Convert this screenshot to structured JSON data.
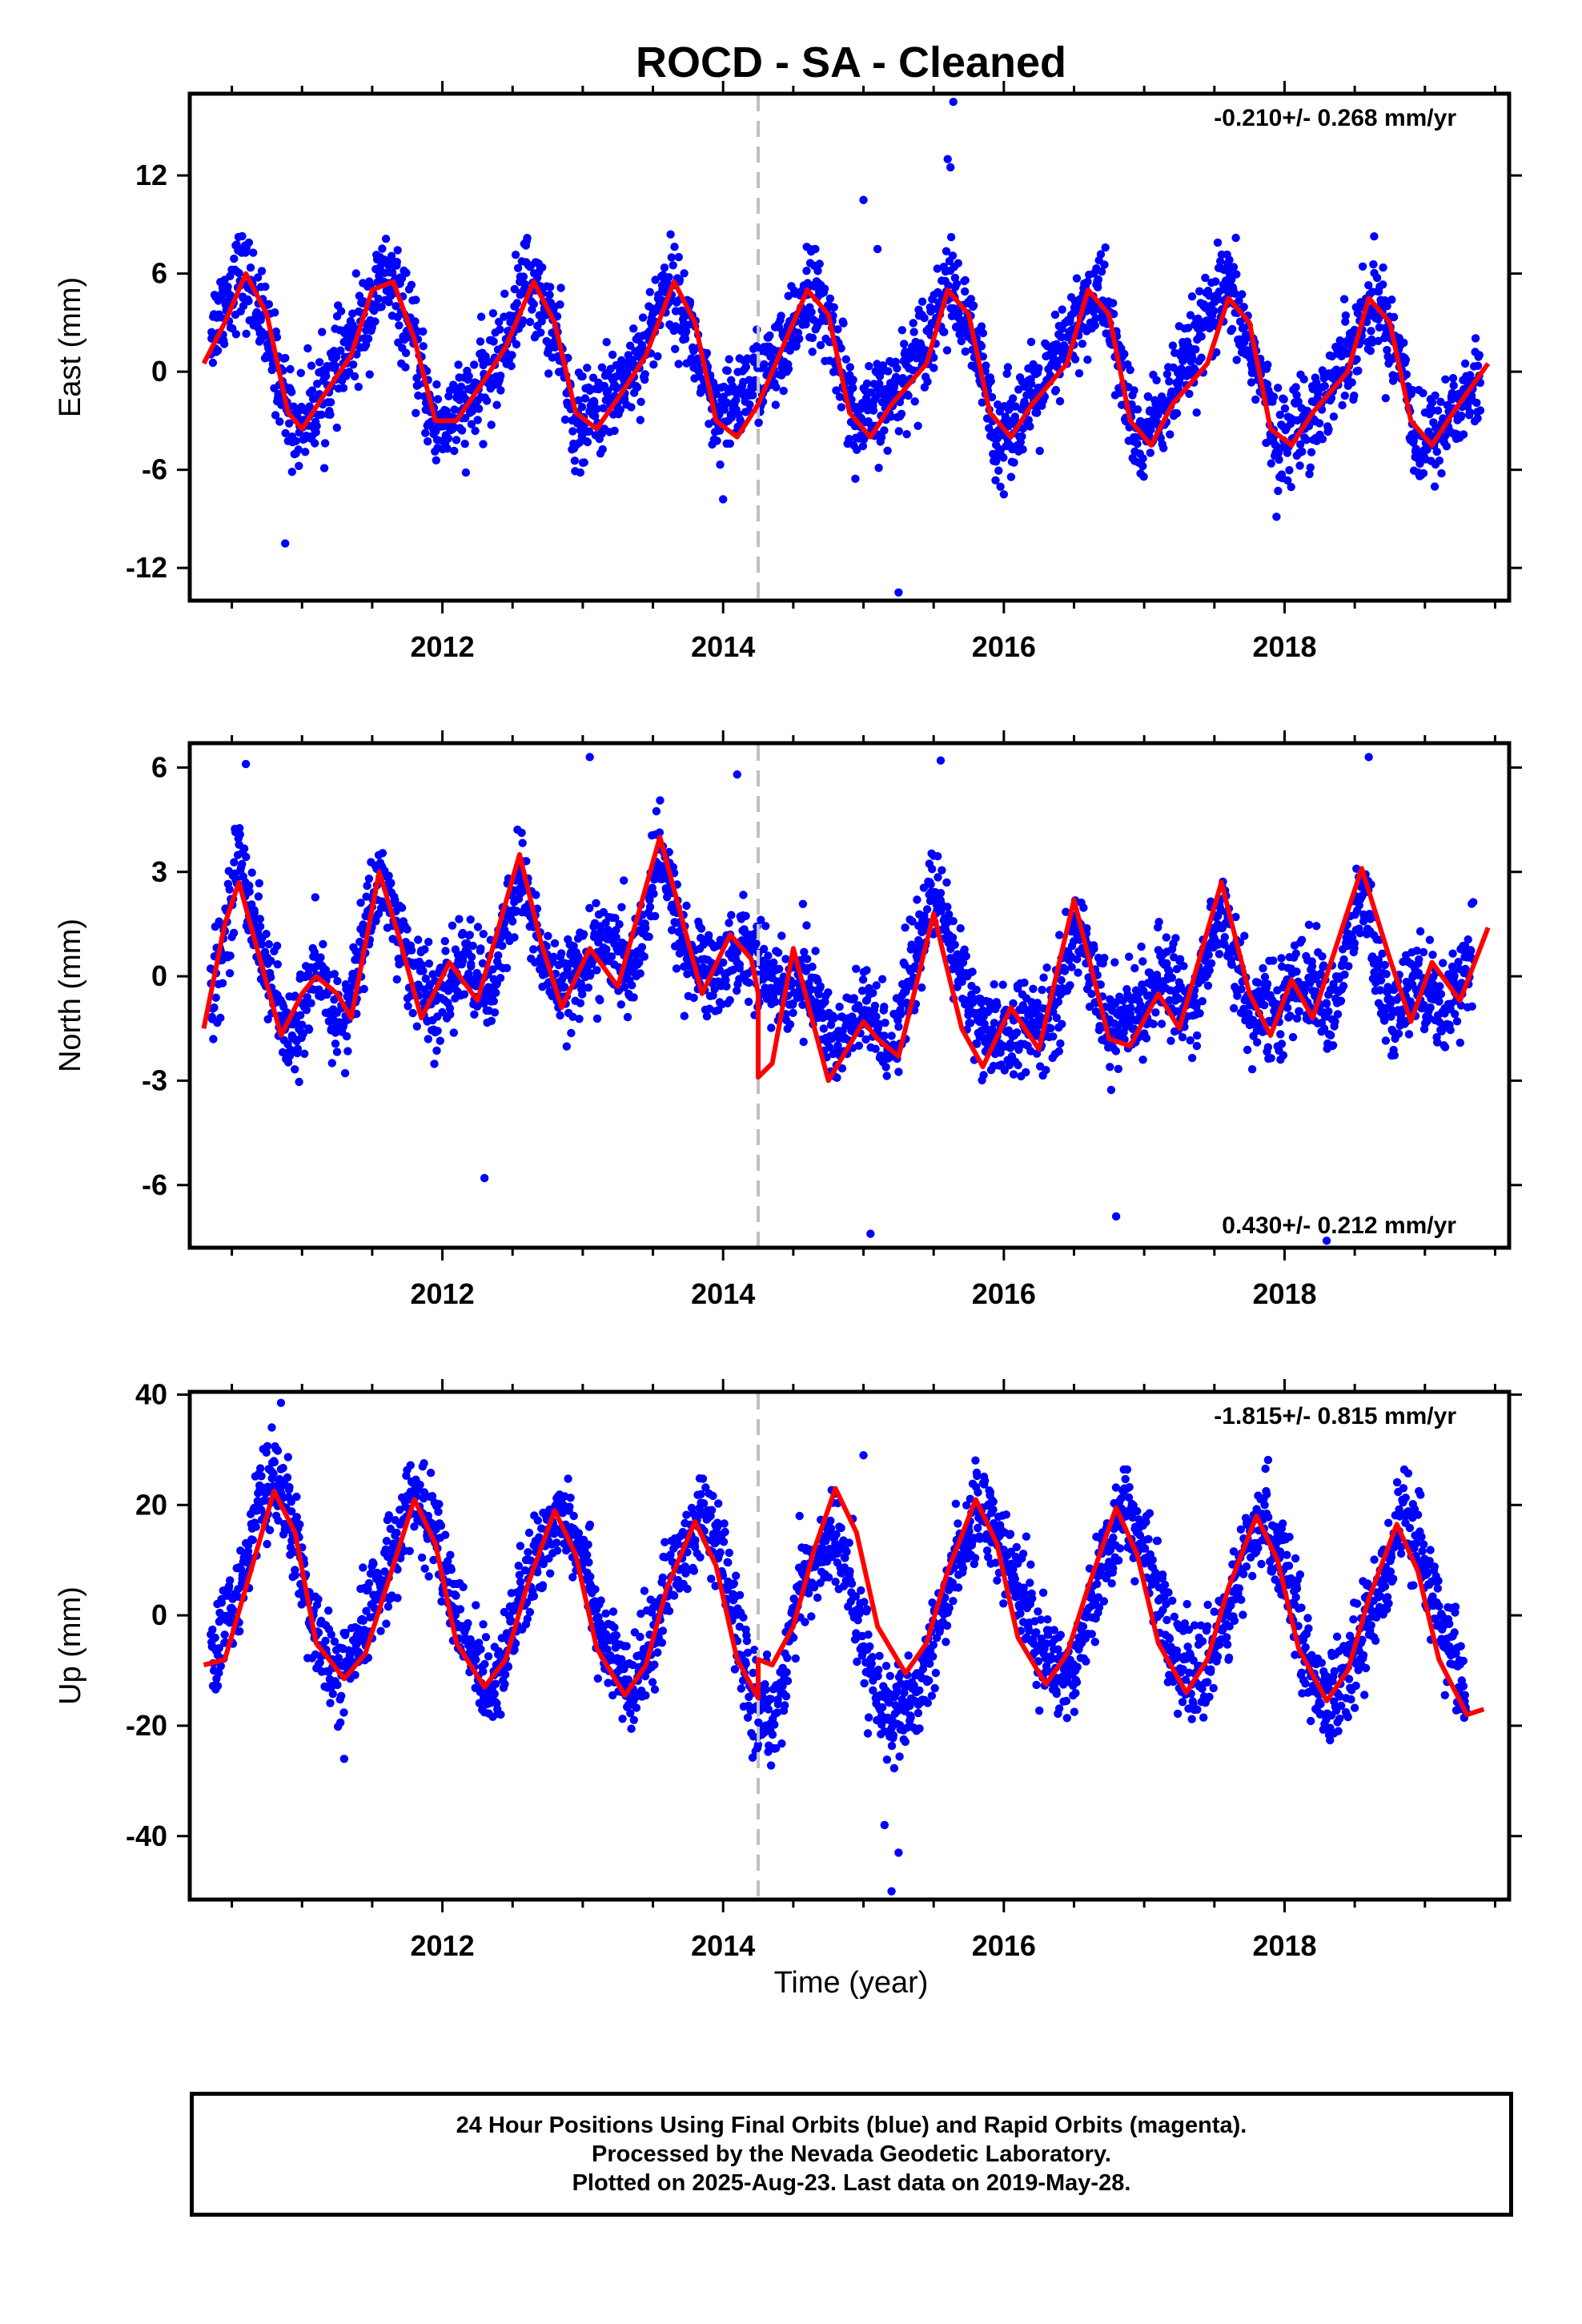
{
  "title": "ROCD  - SA - Cleaned",
  "xlabel": "Time (year)",
  "x_ticks": [
    2012,
    2014,
    2016,
    2018
  ],
  "x_range": [
    2010.2,
    2019.6
  ],
  "step_epoch": 2014.25,
  "colors": {
    "points": "#0000ff",
    "model": "#ff0000",
    "step_line": "#c0c0c0",
    "axes": "#000000"
  },
  "footer": {
    "line1": "24 Hour Positions Using Final Orbits (blue) and Rapid Orbits (magenta).",
    "line2": "Processed by the Nevada Geodetic Laboratory.",
    "line3": "Plotted on 2025-Aug-23. Last data on 2019-May-28."
  },
  "chart_data": [
    {
      "type": "scatter",
      "name": "East",
      "ylabel": "East (mm)",
      "rate_label": "-0.210+/- 0.268 mm/yr",
      "rate_position": "top-right",
      "ylim": [
        -14.0,
        17.0
      ],
      "y_ticks": [
        -12,
        -6,
        0,
        6,
        12
      ],
      "grid": false,
      "series": [
        {
          "name": "daily positions",
          "kind": "points",
          "x": [
            2010.35,
            2010.55,
            2010.65,
            2010.95,
            2011.05,
            2011.35,
            2011.6,
            2011.75,
            2011.95,
            2012.2,
            2012.45,
            2012.6,
            2012.8,
            2012.95,
            2013.2,
            2013.45,
            2013.6,
            2013.75,
            2013.95,
            2014.15,
            2014.45,
            2014.6,
            2014.8,
            2014.95,
            2015.2,
            2015.5,
            2015.6,
            2015.8,
            2015.95,
            2016.25,
            2016.55,
            2016.7,
            2016.95,
            2017.2,
            2017.5,
            2017.6,
            2017.8,
            2017.95,
            2018.25,
            2018.55,
            2018.65,
            2018.85,
            2018.95,
            2019.25,
            2019.4
          ],
          "y": [
            2.5,
            6.0,
            5.0,
            -3.5,
            -2.5,
            1.5,
            6.0,
            3.0,
            -3.5,
            -2.0,
            1.5,
            6.0,
            2.5,
            -3.5,
            -1.5,
            1.5,
            5.5,
            3.0,
            -3.5,
            -1.0,
            1.0,
            5.5,
            2.0,
            -3.5,
            -1.5,
            3.0,
            5.5,
            1.5,
            -4.0,
            -1.5,
            3.5,
            5.0,
            -4.5,
            -1.5,
            4.0,
            5.0,
            0.5,
            -4.5,
            -2.0,
            3.0,
            4.5,
            0.5,
            -5.0,
            -2.0,
            -0.5
          ]
        },
        {
          "name": "outliers",
          "kind": "points",
          "x": [
            2010.88,
            2015.0,
            2015.25,
            2015.6,
            2015.62,
            2015.64,
            2014.0,
            2015.1,
            2016.0
          ],
          "y": [
            -10.5,
            10.5,
            -13.5,
            13.0,
            12.5,
            16.5,
            -7.8,
            7.5,
            -7.5
          ]
        },
        {
          "name": "model",
          "kind": "line",
          "x": [
            2010.3,
            2010.45,
            2010.6,
            2010.75,
            2010.9,
            2011.0,
            2011.15,
            2011.35,
            2011.5,
            2011.65,
            2011.8,
            2011.95,
            2012.1,
            2012.3,
            2012.45,
            2012.65,
            2012.8,
            2012.95,
            2013.1,
            2013.3,
            2013.45,
            2013.65,
            2013.8,
            2013.95,
            2014.1,
            2014.25,
            2014.25,
            2014.4,
            2014.6,
            2014.75,
            2014.9,
            2015.05,
            2015.2,
            2015.45,
            2015.6,
            2015.75,
            2015.9,
            2016.05,
            2016.2,
            2016.45,
            2016.6,
            2016.75,
            2016.9,
            2017.05,
            2017.2,
            2017.45,
            2017.6,
            2017.75,
            2017.9,
            2018.05,
            2018.2,
            2018.45,
            2018.6,
            2018.75,
            2018.9,
            2019.05,
            2019.2,
            2019.45
          ],
          "y": [
            0.5,
            3.0,
            6.0,
            3.5,
            -2.5,
            -3.5,
            -1.5,
            1.0,
            5.0,
            5.5,
            2.0,
            -3.0,
            -3.0,
            -0.5,
            1.5,
            5.5,
            3.0,
            -2.5,
            -3.5,
            -1.0,
            1.0,
            5.5,
            3.0,
            -3.0,
            -4.0,
            -2.0,
            -2.0,
            1.0,
            5.0,
            3.5,
            -2.5,
            -4.0,
            -2.0,
            0.5,
            5.0,
            3.5,
            -2.5,
            -4.0,
            -2.0,
            0.5,
            5.0,
            3.5,
            -3.0,
            -4.5,
            -2.0,
            0.5,
            4.5,
            3.0,
            -3.5,
            -4.5,
            -2.5,
            0.0,
            4.5,
            3.0,
            -3.0,
            -4.5,
            -2.5,
            0.5
          ]
        }
      ]
    },
    {
      "type": "scatter",
      "name": "North",
      "ylabel": "North (mm)",
      "rate_label": "0.430+/- 0.212 mm/yr",
      "rate_position": "bottom-right",
      "ylim": [
        -7.8,
        6.7
      ],
      "y_ticks": [
        -6,
        -3,
        0,
        3,
        6
      ],
      "grid": false,
      "series": [
        {
          "name": "daily positions",
          "kind": "points",
          "x": [
            2010.35,
            2010.55,
            2010.7,
            2010.9,
            2011.1,
            2011.3,
            2011.55,
            2011.75,
            2011.95,
            2012.15,
            2012.35,
            2012.55,
            2012.75,
            2012.95,
            2013.15,
            2013.35,
            2013.55,
            2013.75,
            2013.95,
            2014.15,
            2014.4,
            2014.6,
            2014.8,
            2015.0,
            2015.2,
            2015.5,
            2015.7,
            2015.9,
            2016.1,
            2016.3,
            2016.55,
            2016.75,
            2016.95,
            2017.15,
            2017.35,
            2017.55,
            2017.75,
            2017.95,
            2018.15,
            2018.35,
            2018.55,
            2018.75,
            2018.95,
            2019.15,
            2019.35
          ],
          "y": [
            -1.0,
            3.5,
            1.0,
            -2.0,
            0.0,
            -1.5,
            3.0,
            0.5,
            -1.0,
            0.5,
            -0.5,
            3.0,
            0.0,
            0.0,
            1.0,
            0.0,
            3.5,
            0.5,
            0.0,
            1.0,
            -0.5,
            0.0,
            -2.0,
            -1.0,
            -2.0,
            2.5,
            0.0,
            -2.0,
            -1.5,
            -1.5,
            1.5,
            -1.5,
            -1.0,
            0.0,
            -1.0,
            2.0,
            -1.0,
            -1.0,
            0.0,
            -1.0,
            2.5,
            -1.5,
            0.0,
            -1.0,
            1.0
          ]
        },
        {
          "name": "outliers",
          "kind": "points",
          "x": [
            2012.3,
            2016.8,
            2018.3,
            2014.1,
            2015.05,
            2010.6,
            2013.05,
            2015.55,
            2018.6
          ],
          "y": [
            -5.8,
            -6.9,
            -7.6,
            5.8,
            -7.4,
            6.1,
            6.3,
            6.2,
            6.3
          ]
        },
        {
          "name": "model",
          "kind": "line",
          "x": [
            2010.3,
            2010.45,
            2010.55,
            2010.7,
            2010.85,
            2011.0,
            2011.1,
            2011.25,
            2011.35,
            2011.55,
            2011.7,
            2011.85,
            2012.05,
            2012.25,
            2012.55,
            2012.7,
            2012.85,
            2013.05,
            2013.25,
            2013.55,
            2013.75,
            2013.85,
            2014.05,
            2014.2,
            2014.25,
            2014.25,
            2014.35,
            2014.5,
            2014.75,
            2015.0,
            2015.1,
            2015.25,
            2015.5,
            2015.7,
            2015.85,
            2016.05,
            2016.25,
            2016.5,
            2016.75,
            2016.9,
            2017.1,
            2017.25,
            2017.55,
            2017.75,
            2017.9,
            2018.05,
            2018.2,
            2018.55,
            2018.75,
            2018.9,
            2019.05,
            2019.25,
            2019.45
          ],
          "y": [
            -1.5,
            1.5,
            2.7,
            0.5,
            -1.7,
            -0.5,
            0.0,
            -0.5,
            -1.2,
            3.0,
            1.0,
            -1.2,
            0.4,
            -0.7,
            3.5,
            1.0,
            -0.9,
            0.8,
            -0.3,
            4.0,
            1.0,
            -0.5,
            1.2,
            0.5,
            -0.5,
            -2.9,
            -2.5,
            0.8,
            -3.0,
            -1.3,
            -1.8,
            -2.3,
            1.8,
            -1.5,
            -2.6,
            -0.9,
            -2.1,
            2.2,
            -1.8,
            -2.0,
            -0.5,
            -1.5,
            2.7,
            -0.5,
            -1.7,
            -0.1,
            -1.2,
            3.1,
            0.5,
            -1.3,
            0.4,
            -0.7,
            1.4
          ]
        }
      ]
    },
    {
      "type": "scatter",
      "name": "Up",
      "ylabel": "Up (mm)",
      "rate_label": "-1.815+/- 0.815 mm/yr",
      "rate_position": "top-right",
      "ylim": [
        -51.5,
        40.5
      ],
      "y_ticks": [
        -40,
        -20,
        0,
        20,
        40
      ],
      "grid": false,
      "series": [
        {
          "name": "daily positions",
          "kind": "points",
          "x": [
            2010.35,
            2010.55,
            2010.75,
            2010.9,
            2011.1,
            2011.3,
            2011.55,
            2011.8,
            2011.95,
            2012.15,
            2012.35,
            2012.6,
            2012.85,
            2013.0,
            2013.15,
            2013.35,
            2013.6,
            2013.85,
            2014.0,
            2014.2,
            2014.35,
            2014.55,
            2014.8,
            2015.0,
            2015.2,
            2015.4,
            2015.65,
            2015.85,
            2016.0,
            2016.25,
            2016.45,
            2016.65,
            2016.85,
            2017.0,
            2017.2,
            2017.4,
            2017.65,
            2017.85,
            2018.0,
            2018.2,
            2018.4,
            2018.65,
            2018.85,
            2019.05,
            2019.3
          ],
          "y": [
            -10.0,
            5.0,
            25.0,
            20.0,
            -5.0,
            -12.0,
            5.0,
            22.0,
            15.0,
            -5.0,
            -13.0,
            5.0,
            20.0,
            12.0,
            -5.0,
            -15.0,
            5.0,
            18.0,
            10.0,
            -15.0,
            -20.0,
            5.0,
            15.0,
            -5.0,
            -20.0,
            -15.0,
            10.0,
            20.0,
            12.0,
            -5.0,
            -12.0,
            5.0,
            20.0,
            12.0,
            -5.0,
            -13.0,
            5.0,
            18.0,
            10.0,
            -12.0,
            -15.0,
            3.0,
            18.0,
            5.0,
            -15.0
          ]
        },
        {
          "name": "outliers",
          "kind": "points",
          "x": [
            2015.2,
            2015.25,
            2015.15,
            2010.85,
            2015.0,
            2011.3
          ],
          "y": [
            -50.0,
            -43.0,
            -38.0,
            38.5,
            29.0,
            -26.0
          ]
        },
        {
          "name": "model",
          "kind": "line",
          "x": [
            2010.3,
            2010.45,
            2010.6,
            2010.8,
            2010.95,
            2011.1,
            2011.3,
            2011.45,
            2011.6,
            2011.8,
            2011.95,
            2012.1,
            2012.3,
            2012.45,
            2012.6,
            2012.8,
            2012.95,
            2013.1,
            2013.3,
            2013.45,
            2013.6,
            2013.8,
            2013.95,
            2014.1,
            2014.25,
            2014.25,
            2014.35,
            2014.5,
            2014.65,
            2014.8,
            2014.95,
            2015.1,
            2015.3,
            2015.45,
            2015.6,
            2015.8,
            2015.95,
            2016.1,
            2016.3,
            2016.45,
            2016.6,
            2016.8,
            2016.95,
            2017.1,
            2017.3,
            2017.45,
            2017.6,
            2017.8,
            2017.95,
            2018.1,
            2018.3,
            2018.45,
            2018.6,
            2018.8,
            2018.95,
            2019.1,
            2019.3,
            2019.42
          ],
          "y": [
            -9.0,
            -8.0,
            5.0,
            22.5,
            15.0,
            -5.0,
            -11.5,
            -7.0,
            5.0,
            21.0,
            13.0,
            -5.0,
            -13.0,
            -8.0,
            5.0,
            19.0,
            11.0,
            -6.0,
            -14.5,
            -9.0,
            5.0,
            17.0,
            9.0,
            -8.0,
            -15.0,
            -8.0,
            -9.0,
            -2.0,
            12.0,
            23.0,
            15.0,
            -2.0,
            -10.5,
            -5.0,
            8.0,
            21.0,
            13.0,
            -4.0,
            -12.5,
            -7.0,
            5.0,
            19.5,
            11.0,
            -5.0,
            -14.0,
            -8.0,
            5.0,
            18.0,
            10.0,
            -6.0,
            -15.5,
            -10.0,
            3.0,
            16.5,
            8.0,
            -8.0,
            -18.0,
            -17.0
          ]
        }
      ]
    }
  ]
}
